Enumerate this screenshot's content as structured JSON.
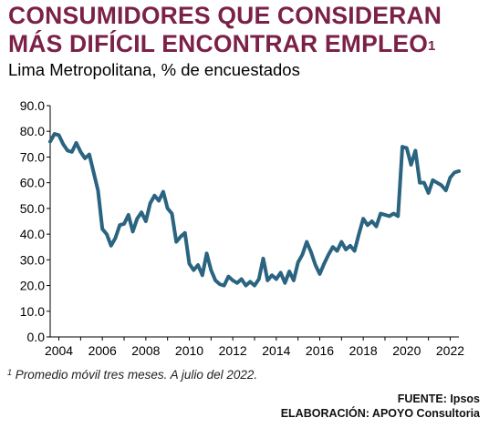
{
  "header": {
    "title_line1": "CONSUMIDORES QUE CONSIDERAN",
    "title_line2": "MÁS DIFÍCIL ENCONTRAR EMPLEO",
    "title_sup": "1",
    "subtitle": "Lima Metropolitana, % de encuestados"
  },
  "footnote": {
    "sup": "1",
    "text": "Promedio móvil tres meses. A julio del 2022."
  },
  "source": {
    "fuente": "FUENTE: Ipsos",
    "elaboracion": "ELABORACIÓN: APOYO Consultoria"
  },
  "colors": {
    "title": "#7b2148",
    "line": "#2a6480",
    "axis": "#000000"
  },
  "chart_data": {
    "type": "line",
    "title": "CONSUMIDORES QUE CONSIDERAN MÁS DIFÍCIL ENCONTRAR EMPLEO",
    "subtitle": "Lima Metropolitana, % de encuestados",
    "xlabel": "",
    "ylabel": "",
    "xlim": [
      2003.6,
      2022.4
    ],
    "ylim": [
      0,
      90
    ],
    "y_ticks": [
      "0.0",
      "10.0",
      "20.0",
      "30.0",
      "40.0",
      "50.0",
      "60.0",
      "70.0",
      "80.0",
      "90.0"
    ],
    "x_ticks": [
      "2004",
      "2006",
      "2008",
      "2010",
      "2012",
      "2014",
      "2016",
      "2018",
      "2020",
      "2022"
    ],
    "grid": false,
    "legend": "none",
    "series": [
      {
        "x": [
          2003.6,
          2003.8,
          2004.0,
          2004.2,
          2004.4,
          2004.6,
          2004.8,
          2005.0,
          2005.2,
          2005.4,
          2005.6,
          2005.8,
          2006.0,
          2006.2,
          2006.4,
          2006.6,
          2006.8,
          2007.0,
          2007.2,
          2007.4,
          2007.6,
          2007.8,
          2008.0,
          2008.2,
          2008.4,
          2008.6,
          2008.8,
          2009.0,
          2009.2,
          2009.4,
          2009.6,
          2009.8,
          2010.0,
          2010.2,
          2010.4,
          2010.6,
          2010.8,
          2011.0,
          2011.2,
          2011.4,
          2011.6,
          2011.8,
          2012.0,
          2012.2,
          2012.4,
          2012.6,
          2012.8,
          2013.0,
          2013.2,
          2013.4,
          2013.6,
          2013.8,
          2014.0,
          2014.2,
          2014.4,
          2014.6,
          2014.8,
          2015.0,
          2015.2,
          2015.4,
          2015.6,
          2015.8,
          2016.0,
          2016.2,
          2016.4,
          2016.6,
          2016.8,
          2017.0,
          2017.2,
          2017.4,
          2017.6,
          2017.8,
          2018.0,
          2018.2,
          2018.4,
          2018.6,
          2018.8,
          2019.0,
          2019.2,
          2019.4,
          2019.6,
          2019.8,
          2020.0,
          2020.2,
          2020.4,
          2020.6,
          2020.8,
          2021.0,
          2021.2,
          2021.4,
          2021.6,
          2021.8,
          2022.0,
          2022.2,
          2022.4
        ],
        "values": [
          76.0,
          79.0,
          78.5,
          75.0,
          72.5,
          72.0,
          75.5,
          72.0,
          69.5,
          71.0,
          64.0,
          57.0,
          42.0,
          40.0,
          35.5,
          38.5,
          43.5,
          44.0,
          47.5,
          41.0,
          46.0,
          48.5,
          45.0,
          52.0,
          55.0,
          53.0,
          56.5,
          50.0,
          48.0,
          37.0,
          39.0,
          40.5,
          28.5,
          26.0,
          28.0,
          24.0,
          32.5,
          26.0,
          22.0,
          20.5,
          20.0,
          23.5,
          22.0,
          21.0,
          22.5,
          20.0,
          21.5,
          20.0,
          22.5,
          30.5,
          22.0,
          24.0,
          22.5,
          25.0,
          21.0,
          25.5,
          22.0,
          29.0,
          32.0,
          37.0,
          33.0,
          28.0,
          24.5,
          28.5,
          32.0,
          35.0,
          33.5,
          37.0,
          34.0,
          35.5,
          33.5,
          40.0,
          46.0,
          43.5,
          45.0,
          43.0,
          48.0,
          47.5,
          47.0,
          48.0,
          47.0,
          74.0,
          73.5,
          67.0,
          72.5,
          60.0,
          60.0,
          56.0,
          61.0,
          60.0,
          59.0,
          57.0,
          62.0,
          64.0,
          64.5
        ]
      }
    ]
  }
}
